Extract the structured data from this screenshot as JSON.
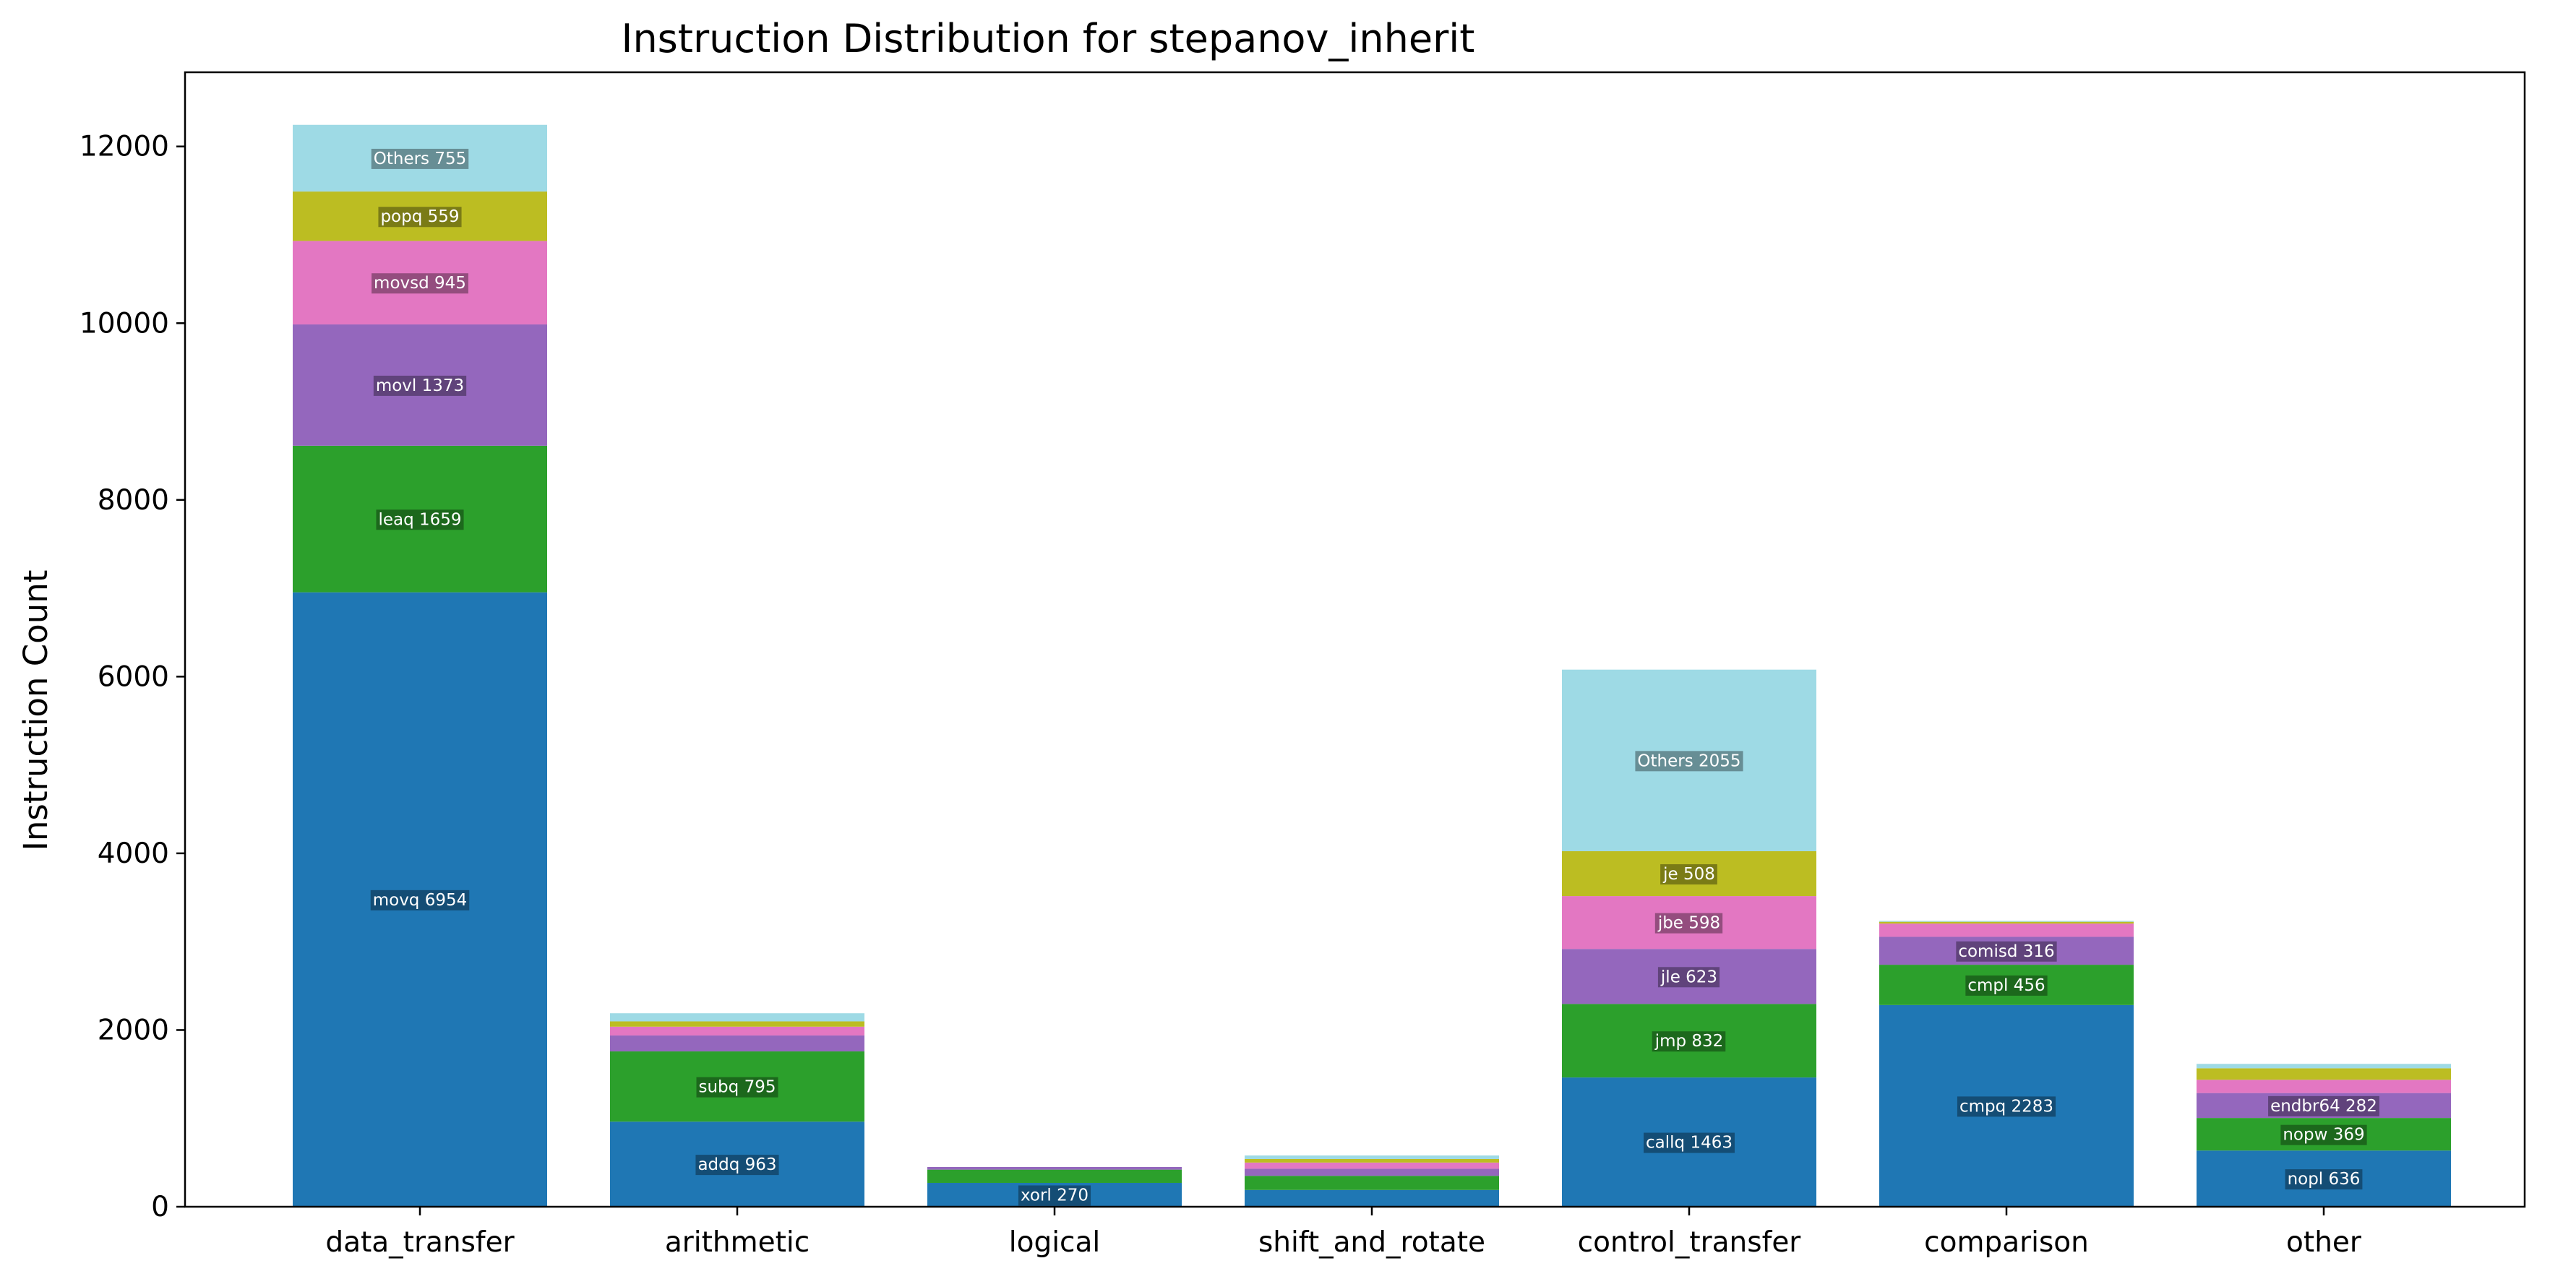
{
  "chart_data": {
    "type": "bar",
    "stacked": true,
    "title": "Instruction Distribution for stepanov_inherit",
    "xlabel": "",
    "ylabel": "Instruction Count",
    "ylim": [
      0,
      12840
    ],
    "yticks": [
      0,
      2000,
      4000,
      6000,
      8000,
      10000,
      12000
    ],
    "grid": false,
    "legend": "none",
    "categories": [
      "data_transfer",
      "arithmetic",
      "logical",
      "shift_and_rotate",
      "control_transfer",
      "comparison",
      "other"
    ],
    "level_colors": [
      "#1f77b4",
      "#2ca02c",
      "#9467bd",
      "#e377c2",
      "#bcbd22",
      "#9edae5"
    ],
    "bars": [
      {
        "category": "data_transfer",
        "segments": [
          {
            "label": "movq 6954",
            "value": 6954
          },
          {
            "label": "leaq 1659",
            "value": 1659
          },
          {
            "label": "movl 1373",
            "value": 1373
          },
          {
            "label": "movsd 945",
            "value": 945
          },
          {
            "label": "popq 559",
            "value": 559
          },
          {
            "label": "Others 755",
            "value": 755
          }
        ]
      },
      {
        "category": "arithmetic",
        "segments": [
          {
            "label": "addq 963",
            "value": 963
          },
          {
            "label": "subq 795",
            "value": 795
          },
          {
            "label": "",
            "value": 180
          },
          {
            "label": "",
            "value": 100
          },
          {
            "label": "",
            "value": 60
          },
          {
            "label": "",
            "value": 92
          }
        ]
      },
      {
        "category": "logical",
        "segments": [
          {
            "label": "xorl 270",
            "value": 270
          },
          {
            "label": "",
            "value": 150
          },
          {
            "label": "",
            "value": 30
          }
        ]
      },
      {
        "category": "shift_and_rotate",
        "segments": [
          {
            "label": "",
            "value": 190
          },
          {
            "label": "",
            "value": 160
          },
          {
            "label": "",
            "value": 80
          },
          {
            "label": "",
            "value": 70
          },
          {
            "label": "",
            "value": 40
          },
          {
            "label": "",
            "value": 40
          }
        ]
      },
      {
        "category": "control_transfer",
        "segments": [
          {
            "label": "callq 1463",
            "value": 1463
          },
          {
            "label": "jmp 832",
            "value": 832
          },
          {
            "label": "jle 623",
            "value": 623
          },
          {
            "label": "jbe 598",
            "value": 598
          },
          {
            "label": "je 508",
            "value": 508
          },
          {
            "label": "Others 2055",
            "value": 2055
          }
        ]
      },
      {
        "category": "comparison",
        "segments": [
          {
            "label": "cmpq 2283",
            "value": 2283
          },
          {
            "label": "cmpl 456",
            "value": 456
          },
          {
            "label": "comisd 316",
            "value": 316
          },
          {
            "label": "",
            "value": 150
          },
          {
            "label": "",
            "value": 20
          },
          {
            "label": "",
            "value": 10
          }
        ]
      },
      {
        "category": "other",
        "segments": [
          {
            "label": "nopl 636",
            "value": 636
          },
          {
            "label": "nopw 369",
            "value": 369
          },
          {
            "label": "endbr64 282",
            "value": 282
          },
          {
            "label": "",
            "value": 150
          },
          {
            "label": "",
            "value": 130
          },
          {
            "label": "",
            "value": 50
          }
        ]
      }
    ]
  }
}
